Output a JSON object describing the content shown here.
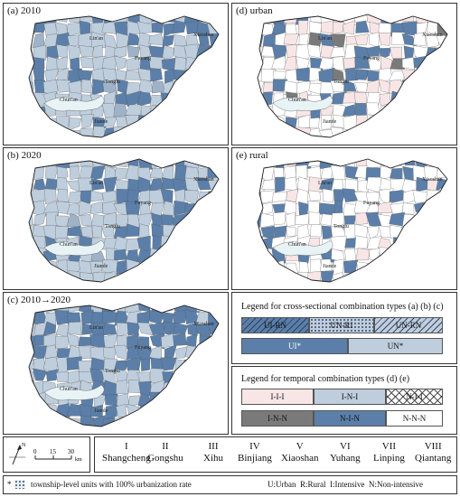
{
  "panels": {
    "a": {
      "title": "(a) 2010"
    },
    "b": {
      "title": "(b) 2020"
    },
    "c": {
      "title": "(c) 2010→2020"
    },
    "d": {
      "title": "(d) urban"
    },
    "e": {
      "title": "(e) rural"
    }
  },
  "map_labels": {
    "linan": "Lin'an",
    "fuyang": "Fuyang",
    "tonglu": "Tonglu",
    "chunan": "Chun'an",
    "jiande": "Jiande",
    "xiaoshan": "Xiaoshan"
  },
  "legend_cross": {
    "title": "Legend for cross-sectional combination types (a) (b) (c)",
    "row1": [
      "UI-RN",
      "UN-RI",
      "UN-RN"
    ],
    "row2": [
      "UI*",
      "UN*"
    ]
  },
  "legend_temporal": {
    "title": "Legend for temporal combination types (d) (e)",
    "row1": [
      "I-I-I",
      "I-N-I",
      "N-I-I"
    ],
    "row2": [
      "I-N-N",
      "N-I-N",
      "N-N-N"
    ]
  },
  "colors": {
    "dark_blue": "#5b7fa9",
    "light_blue": "#bfcedd",
    "grey_blue": "#9fb3c8",
    "pink": "#f8e6e6",
    "dark_grey": "#7a7a7a",
    "outline": "#555555"
  },
  "scale": {
    "ticks": [
      "0",
      "15",
      "30"
    ],
    "unit": "km",
    "north": "N"
  },
  "districts": [
    {
      "num": "I",
      "name": "Shangcheng"
    },
    {
      "num": "II",
      "name": "Gongshu"
    },
    {
      "num": "III",
      "name": "Xihu"
    },
    {
      "num": "IV",
      "name": "Binjiang"
    },
    {
      "num": "V",
      "name": "Xiaoshan"
    },
    {
      "num": "VI",
      "name": "Yuhang"
    },
    {
      "num": "VII",
      "name": "Linping"
    },
    {
      "num": "VIII",
      "name": "Qiantang"
    }
  ],
  "footnote": {
    "mark": "*",
    "text": "township-level units with 100% urbanization rate",
    "abbrev": "U:Urban  R:Rural  I:Intensive  N:Non-intensive"
  }
}
